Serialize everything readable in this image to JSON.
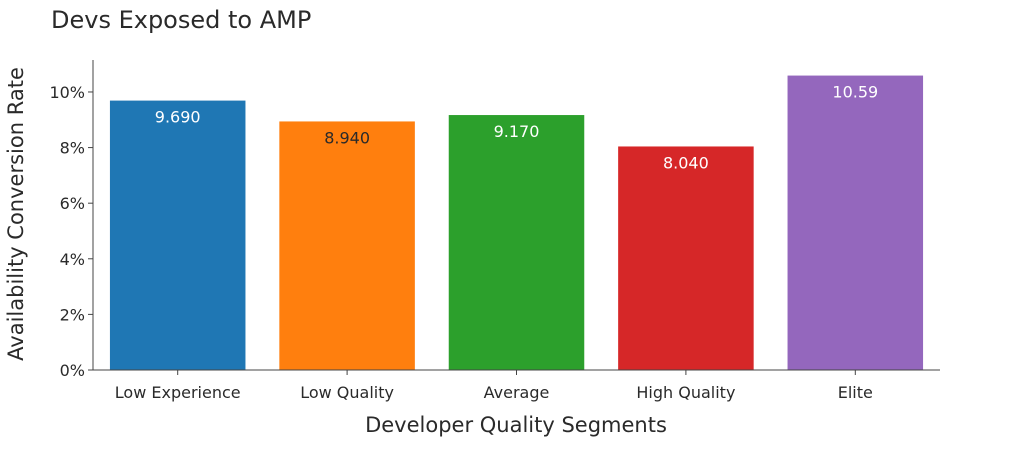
{
  "chart_data": {
    "type": "bar",
    "title": "Devs Exposed to AMP",
    "xlabel": "Developer Quality Segments",
    "ylabel": "Availability Conversion Rate",
    "categories": [
      "Low Experience",
      "Low Quality",
      "Average",
      "High Quality",
      "Elite"
    ],
    "values": [
      9.69,
      8.94,
      9.17,
      8.04,
      10.59
    ],
    "data_labels": [
      "9.690",
      "8.940",
      "9.170",
      "8.040",
      "10.59"
    ],
    "colors": [
      "#1f77b4",
      "#ff7f0e",
      "#2ca02c",
      "#d62728",
      "#9467bd"
    ],
    "label_colors": [
      "#ffffff",
      "#2a2a2a",
      "#ffffff",
      "#ffffff",
      "#ffffff"
    ],
    "yticks": [
      0,
      2,
      4,
      6,
      8,
      10
    ],
    "ytick_labels": [
      "0%",
      "2%",
      "4%",
      "6%",
      "8%",
      "10%"
    ],
    "ylim": [
      0,
      11.15
    ],
    "grid": false,
    "legend": "none"
  }
}
